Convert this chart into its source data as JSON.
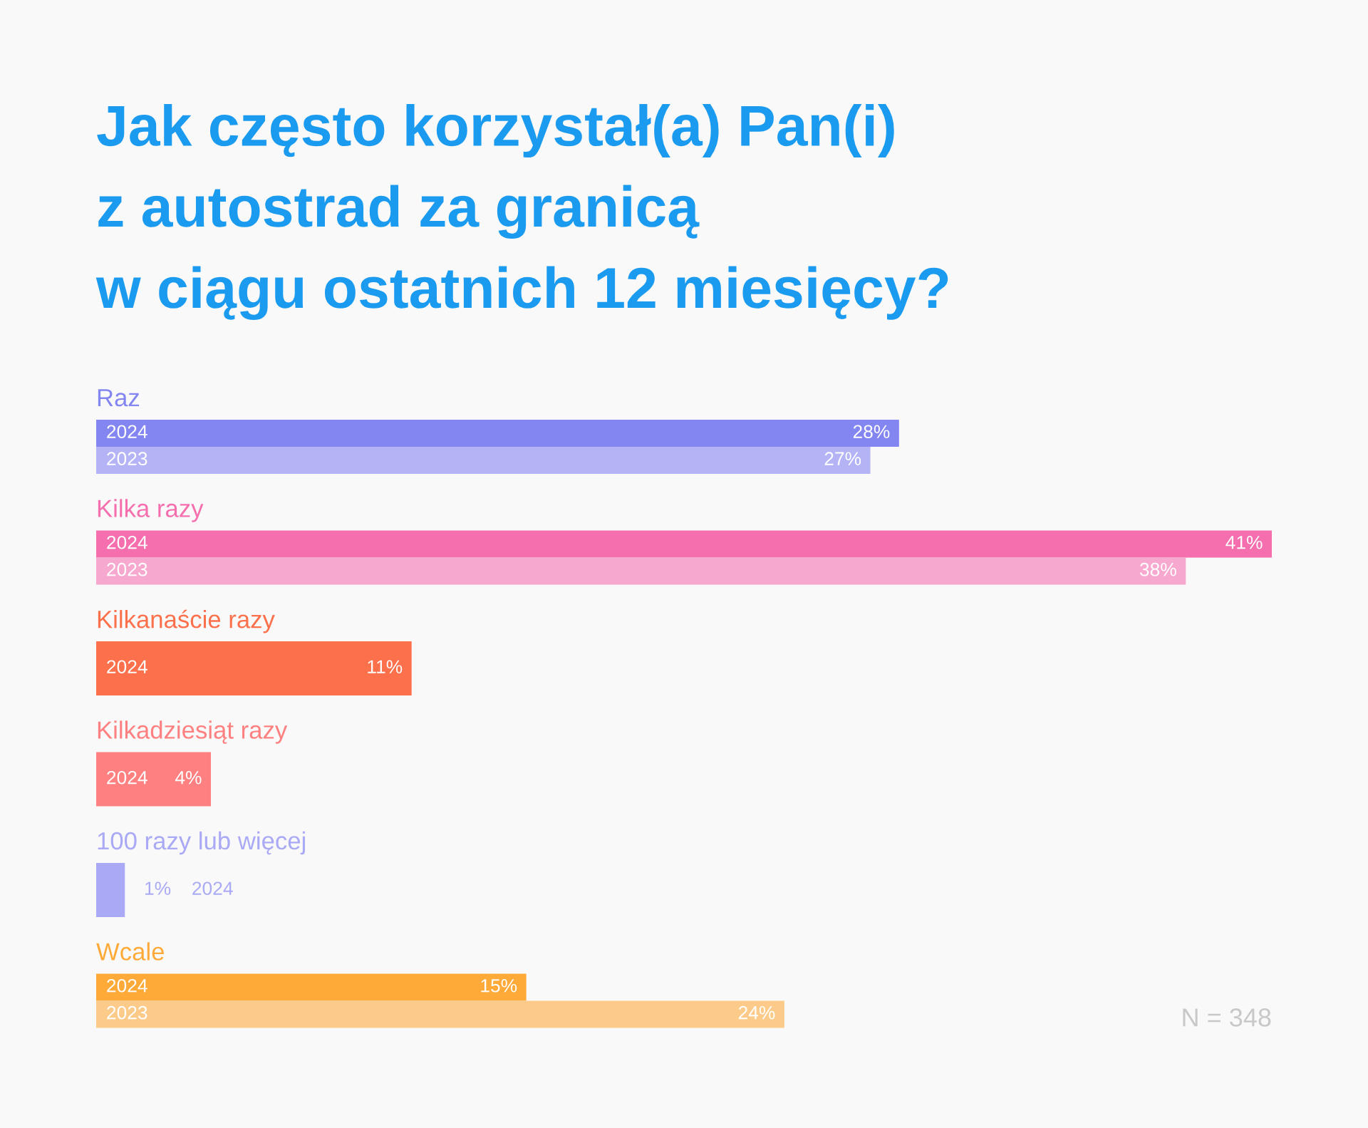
{
  "chart_data": {
    "type": "bar",
    "orientation": "horizontal",
    "title": "Jak często korzystał(a) Pan(i)\nz autostrad za granicą\nw ciągu ostatnich 12 miesięcy?",
    "categories": [
      "Raz",
      "Kilka razy",
      "Kilkanaście razy",
      "Kilkadziesiąt razy",
      "100 razy lub więcej",
      "Wcale"
    ],
    "series": [
      {
        "name": "2024",
        "colors": [
          "#8385f1",
          "#f56faf",
          "#fc704b",
          "#fe8080",
          "#a9a9f5",
          "#feaa39"
        ],
        "values": [
          28,
          41,
          11,
          4,
          1,
          15
        ],
        "value_labels": [
          "28%",
          "41%",
          "11%",
          "4%",
          "1%",
          "15%"
        ]
      },
      {
        "name": "2023",
        "colors": [
          "#b3b3f5",
          "#f7a8cf",
          null,
          null,
          null,
          "#fccb89"
        ],
        "values": [
          27,
          38,
          null,
          null,
          null,
          24
        ],
        "value_labels": [
          "27%",
          "38%",
          null,
          null,
          null,
          "24%"
        ]
      }
    ],
    "tick_labels": "y",
    "annotations": [
      "N = 348"
    ]
  }
}
